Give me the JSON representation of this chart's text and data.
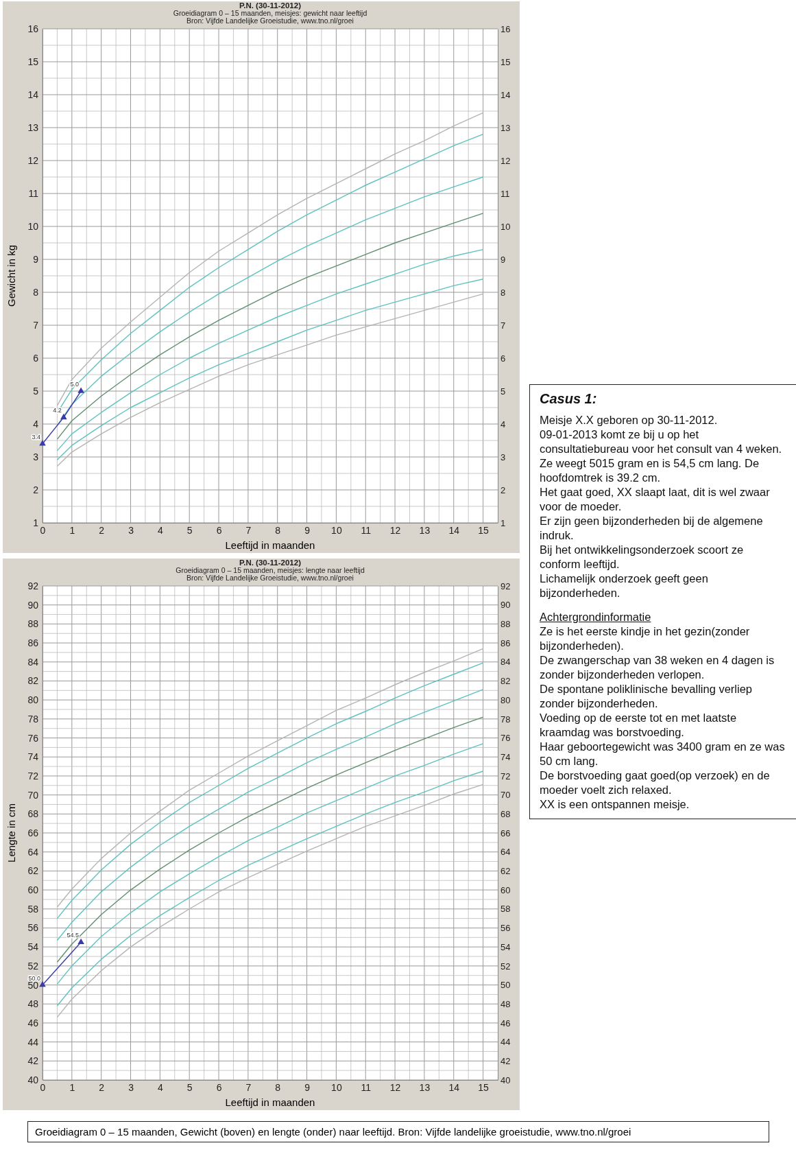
{
  "chart_data": [
    {
      "type": "line",
      "title": "P.N. (30-11-2012)",
      "subtitle": "Groeidiagram 0 – 15 maanden, meisjes: gewicht naar leeftijd\nBron: Vijfde Landelijke Groeistudie, www.tno.nl/groei",
      "xlabel": "Leeftijd in maanden",
      "ylabel": "Gewicht in kg",
      "xlim": [
        0,
        15.5
      ],
      "xticks": [
        0,
        1,
        2,
        3,
        4,
        5,
        6,
        7,
        8,
        9,
        10,
        11,
        12,
        13,
        14,
        15
      ],
      "ylim": [
        1,
        16
      ],
      "yticks": [
        1,
        2,
        3,
        4,
        5,
        6,
        7,
        8,
        9,
        10,
        11,
        12,
        13,
        14,
        15,
        16
      ],
      "y2lim": [
        1,
        16
      ],
      "y2ticks": [
        1,
        2,
        3,
        4,
        5,
        6,
        7,
        8,
        9,
        10,
        11,
        12,
        13,
        14,
        15,
        16
      ],
      "grid": true,
      "marker": "none",
      "x": [
        0.5,
        1,
        2,
        3,
        4,
        5,
        6,
        7,
        8,
        9,
        10,
        11,
        12,
        13,
        14,
        15
      ],
      "series": [
        {
          "color": "#b4b4b4",
          "values": [
            4.56,
            5.35,
            6.3,
            7.1,
            7.85,
            8.6,
            9.25,
            9.8,
            10.35,
            10.85,
            11.3,
            11.75,
            12.2,
            12.6,
            13.05,
            13.45
          ]
        },
        {
          "color": "#5cc3bf",
          "values": [
            4.34,
            5.05,
            5.95,
            6.75,
            7.45,
            8.15,
            8.75,
            9.3,
            9.85,
            10.35,
            10.8,
            11.25,
            11.65,
            12.05,
            12.45,
            12.8
          ]
        },
        {
          "color": "#5cc3bf",
          "values": [
            3.95,
            4.6,
            5.45,
            6.15,
            6.8,
            7.4,
            7.95,
            8.45,
            8.95,
            9.4,
            9.8,
            10.2,
            10.55,
            10.9,
            11.2,
            11.5
          ]
        },
        {
          "color": "#5e8f6e",
          "values": [
            3.54,
            4.1,
            4.85,
            5.5,
            6.1,
            6.65,
            7.15,
            7.6,
            8.05,
            8.45,
            8.8,
            9.15,
            9.5,
            9.8,
            10.1,
            10.4
          ]
        },
        {
          "color": "#5cc3bf",
          "values": [
            3.19,
            3.7,
            4.35,
            4.95,
            5.5,
            6.0,
            6.45,
            6.85,
            7.25,
            7.6,
            7.95,
            8.25,
            8.55,
            8.85,
            9.1,
            9.3
          ]
        },
        {
          "color": "#5cc3bf",
          "values": [
            2.91,
            3.35,
            3.95,
            4.5,
            4.95,
            5.4,
            5.8,
            6.15,
            6.5,
            6.85,
            7.15,
            7.45,
            7.7,
            7.95,
            8.2,
            8.4
          ]
        },
        {
          "color": "#b4b4b4",
          "values": [
            2.72,
            3.15,
            3.7,
            4.2,
            4.65,
            5.05,
            5.45,
            5.8,
            6.1,
            6.4,
            6.7,
            6.95,
            7.2,
            7.45,
            7.7,
            7.95
          ]
        },
        {
          "color": "#3a3aa8",
          "marker": "triangle",
          "x": [
            0,
            0.72,
            1.31
          ],
          "values": [
            3.4,
            4.2,
            5.0
          ],
          "value_labels": [
            "3.4",
            "4.2",
            "5.0"
          ]
        }
      ]
    },
    {
      "type": "line",
      "title": "P.N. (30-11-2012)",
      "subtitle": "Groeidiagram 0 – 15 maanden, meisjes: lengte naar leeftijd\nBron: Vijfde Landelijke Groeistudie, www.tno.nl/groei",
      "xlabel": "Leeftijd in maanden",
      "ylabel": "Lengte in cm",
      "xlim": [
        0,
        15.5
      ],
      "xticks": [
        0,
        1,
        2,
        3,
        4,
        5,
        6,
        7,
        8,
        9,
        10,
        11,
        12,
        13,
        14,
        15
      ],
      "ylim": [
        40,
        92
      ],
      "yticks": [
        40,
        42,
        44,
        46,
        48,
        50,
        52,
        54,
        56,
        58,
        60,
        62,
        64,
        66,
        68,
        70,
        72,
        74,
        76,
        78,
        80,
        82,
        84,
        86,
        88,
        90,
        92
      ],
      "y2lim": [
        40,
        92
      ],
      "y2ticks": [
        40,
        42,
        44,
        46,
        48,
        50,
        52,
        54,
        56,
        58,
        60,
        62,
        64,
        66,
        68,
        70,
        72,
        74,
        76,
        78,
        80,
        82,
        84,
        86,
        88,
        90,
        92
      ],
      "grid": true,
      "marker": "none",
      "x": [
        0.5,
        1,
        2,
        3,
        4,
        5,
        6,
        7,
        8,
        9,
        10,
        11,
        12,
        13,
        14,
        15
      ],
      "annotations": [
        "Groeidiagram 0 – 15 maanden, Gewicht (boven) en lengte (onder) naar leeftijd. Bron: Vijfde landelijke groeistudie, www.tno.nl/groei"
      ],
      "series": [
        {
          "color": "#b4b4b4",
          "values": [
            58.2,
            60.1,
            63.3,
            66.0,
            68.3,
            70.5,
            72.3,
            74.1,
            75.7,
            77.3,
            78.9,
            80.2,
            81.6,
            82.9,
            84.1,
            85.4
          ]
        },
        {
          "color": "#5cc3bf",
          "values": [
            57.0,
            58.9,
            62.1,
            64.8,
            67.1,
            69.2,
            71.0,
            72.8,
            74.4,
            76.0,
            77.5,
            78.8,
            80.2,
            81.5,
            82.7,
            83.9
          ]
        },
        {
          "color": "#5cc3bf",
          "values": [
            54.7,
            56.6,
            59.8,
            62.4,
            64.7,
            66.7,
            68.5,
            70.3,
            71.8,
            73.4,
            74.8,
            76.1,
            77.5,
            78.7,
            79.9,
            81.1
          ]
        },
        {
          "color": "#5e8f6e",
          "values": [
            52.4,
            54.3,
            57.4,
            60.0,
            62.2,
            64.2,
            66.0,
            67.7,
            69.2,
            70.7,
            72.1,
            73.4,
            74.7,
            75.9,
            77.1,
            78.2
          ]
        },
        {
          "color": "#5cc3bf",
          "values": [
            50.1,
            52.0,
            55.1,
            57.6,
            59.8,
            61.7,
            63.5,
            65.2,
            66.6,
            68.1,
            69.4,
            70.7,
            72.0,
            73.1,
            74.3,
            75.4
          ]
        },
        {
          "color": "#5cc3bf",
          "values": [
            47.8,
            49.7,
            52.7,
            55.2,
            57.3,
            59.2,
            61.0,
            62.6,
            64.0,
            65.4,
            66.7,
            68.0,
            69.2,
            70.3,
            71.5,
            72.5
          ]
        },
        {
          "color": "#b4b4b4",
          "values": [
            46.6,
            48.5,
            51.5,
            54.0,
            56.1,
            58.0,
            59.8,
            61.3,
            62.7,
            64.1,
            65.4,
            66.7,
            67.8,
            68.9,
            70.1,
            71.1
          ]
        },
        {
          "color": "#3a3aa8",
          "marker": "triangle",
          "x": [
            0,
            1.31
          ],
          "values": [
            50.0,
            54.5
          ],
          "value_labels": [
            "50.0",
            "54.5"
          ]
        }
      ]
    },
    {
      "type": "other",
      "title": "Casus 1:",
      "annotations": [
        "Meisje X.X geboren op 30-11-2012.",
        "09-01-2013 komt ze bij u op het consultatiebureau voor het consult van 4 weken.",
        "Ze weegt 5015 gram en is 54,5 cm lang. De hoofdomtrek is 39.2 cm.",
        "Het gaat goed, XX slaapt laat, dit is wel zwaar voor de moeder.",
        "Er zijn geen bijzonderheden bij de algemene indruk.",
        "Bij het ontwikkelingsonderzoek scoort ze conform leeftijd.",
        "Lichamelijk onderzoek geeft geen bijzonderheden."
      ]
    },
    {
      "type": "other",
      "title": "Achtergrondinformatie",
      "annotations": [
        "Ze is het eerste kindje in het gezin(zonder bijzonderheden).",
        "De zwangerschap van 38 weken en 4 dagen is zonder bijzonderheden verlopen.",
        "De spontane poliklinische bevalling verliep zonder bijzonderheden.",
        "Voeding op de eerste tot en met laatste kraamdag was borstvoeding.",
        "Haar geboortegewicht was 3400 gram en ze was 50 cm lang.",
        "De borstvoeding gaat goed(op verzoek) en de moeder voelt zich relaxed.",
        "XX is een ontspannen meisje."
      ]
    }
  ]
}
